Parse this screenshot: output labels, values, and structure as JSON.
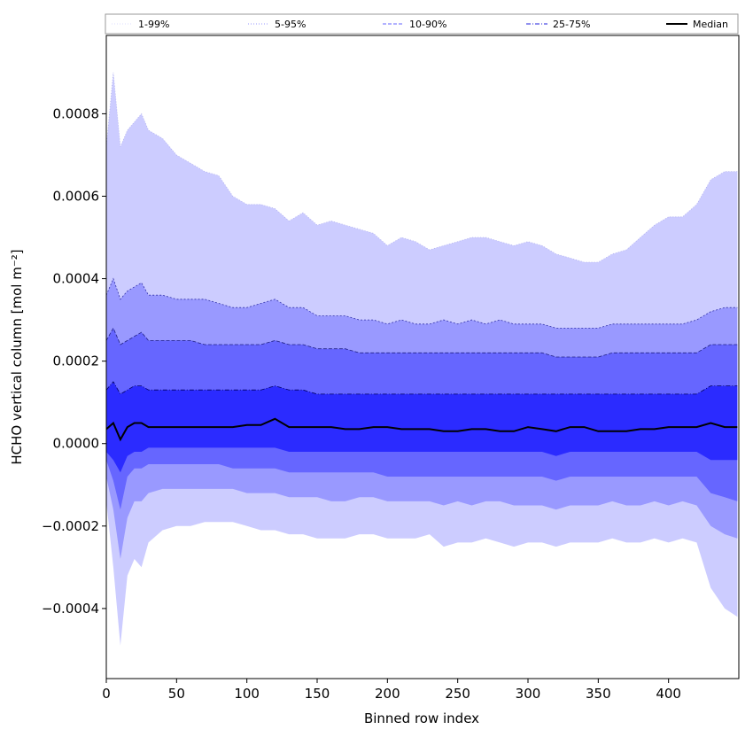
{
  "chart_data": {
    "type": "area",
    "xlabel": "Binned row index",
    "ylabel": "HCHO vertical column [mol m⁻²]",
    "xlim": [
      0,
      450
    ],
    "ylim": [
      -0.00057,
      0.00099
    ],
    "x_ticks": [
      0,
      50,
      100,
      150,
      200,
      250,
      300,
      350,
      400
    ],
    "x_tick_labels": [
      "0",
      "50",
      "100",
      "150",
      "200",
      "250",
      "300",
      "350",
      "400"
    ],
    "y_ticks": [
      -0.0004,
      -0.0002,
      0.0,
      0.0002,
      0.0004,
      0.0006,
      0.0008
    ],
    "y_tick_labels": [
      "−0.0004",
      "−0.0002",
      "0.0000",
      "0.0002",
      "0.0004",
      "0.0006",
      "0.0008"
    ],
    "grid": false,
    "legend_position": "top",
    "legend": [
      {
        "label": "1-99%",
        "color": "#dcdcff",
        "style": "dotted"
      },
      {
        "label": "5-95%",
        "color": "#9999ff",
        "style": "dotted"
      },
      {
        "label": "10-90%",
        "color": "#6666ff",
        "style": "dashed"
      },
      {
        "label": "25-75%",
        "color": "#2222dd",
        "style": "dashdot"
      },
      {
        "label": "Median",
        "color": "#000000",
        "style": "solid"
      }
    ],
    "x": [
      0,
      5,
      10,
      15,
      20,
      25,
      30,
      40,
      50,
      60,
      70,
      80,
      90,
      100,
      110,
      120,
      130,
      140,
      150,
      160,
      170,
      180,
      190,
      200,
      210,
      220,
      230,
      240,
      250,
      260,
      270,
      280,
      290,
      300,
      310,
      320,
      330,
      340,
      350,
      360,
      370,
      380,
      390,
      400,
      410,
      420,
      430,
      440,
      449
    ],
    "series": [
      {
        "name": "1-99%",
        "lower": [
          -0.00014,
          -0.0003,
          -0.00049,
          -0.00032,
          -0.00028,
          -0.0003,
          -0.00024,
          -0.00021,
          -0.0002,
          -0.0002,
          -0.00019,
          -0.00019,
          -0.00019,
          -0.0002,
          -0.00021,
          -0.00021,
          -0.00022,
          -0.00022,
          -0.00023,
          -0.00023,
          -0.00023,
          -0.00022,
          -0.00022,
          -0.00023,
          -0.00023,
          -0.00023,
          -0.00022,
          -0.00025,
          -0.00024,
          -0.00024,
          -0.00023,
          -0.00024,
          -0.00025,
          -0.00024,
          -0.00024,
          -0.00025,
          -0.00024,
          -0.00024,
          -0.00024,
          -0.00023,
          -0.00024,
          -0.00024,
          -0.00023,
          -0.00024,
          -0.00023,
          -0.00024,
          -0.00035,
          -0.0004,
          -0.00042
        ],
        "upper": [
          0.00072,
          0.0009,
          0.00072,
          0.00076,
          0.00078,
          0.0008,
          0.00076,
          0.00074,
          0.0007,
          0.00068,
          0.00066,
          0.00065,
          0.0006,
          0.00058,
          0.00058,
          0.00057,
          0.00054,
          0.00056,
          0.00053,
          0.00054,
          0.00053,
          0.00052,
          0.00051,
          0.00048,
          0.0005,
          0.00049,
          0.00047,
          0.00048,
          0.00049,
          0.0005,
          0.0005,
          0.00049,
          0.00048,
          0.00049,
          0.00048,
          0.00046,
          0.00045,
          0.00044,
          0.00044,
          0.00046,
          0.00047,
          0.0005,
          0.00053,
          0.00055,
          0.00055,
          0.00058,
          0.00064,
          0.00066,
          0.00066
        ]
      },
      {
        "name": "5-95%",
        "lower": [
          -8e-05,
          -0.00016,
          -0.00028,
          -0.00018,
          -0.00014,
          -0.00014,
          -0.00012,
          -0.00011,
          -0.00011,
          -0.00011,
          -0.00011,
          -0.00011,
          -0.00011,
          -0.00012,
          -0.00012,
          -0.00012,
          -0.00013,
          -0.00013,
          -0.00013,
          -0.00014,
          -0.00014,
          -0.00013,
          -0.00013,
          -0.00014,
          -0.00014,
          -0.00014,
          -0.00014,
          -0.00015,
          -0.00014,
          -0.00015,
          -0.00014,
          -0.00014,
          -0.00015,
          -0.00015,
          -0.00015,
          -0.00016,
          -0.00015,
          -0.00015,
          -0.00015,
          -0.00014,
          -0.00015,
          -0.00015,
          -0.00014,
          -0.00015,
          -0.00014,
          -0.00015,
          -0.0002,
          -0.00022,
          -0.00023
        ],
        "upper": [
          0.00036,
          0.0004,
          0.00035,
          0.00037,
          0.00038,
          0.00039,
          0.00036,
          0.00036,
          0.00035,
          0.00035,
          0.00035,
          0.00034,
          0.00033,
          0.00033,
          0.00034,
          0.00035,
          0.00033,
          0.00033,
          0.00031,
          0.00031,
          0.00031,
          0.0003,
          0.0003,
          0.00029,
          0.0003,
          0.00029,
          0.00029,
          0.0003,
          0.00029,
          0.0003,
          0.00029,
          0.0003,
          0.00029,
          0.00029,
          0.00029,
          0.00028,
          0.00028,
          0.00028,
          0.00028,
          0.00029,
          0.00029,
          0.00029,
          0.00029,
          0.00029,
          0.00029,
          0.0003,
          0.00032,
          0.00033,
          0.00033
        ]
      },
      {
        "name": "10-90%",
        "lower": [
          -4e-05,
          -9e-05,
          -0.00016,
          -8e-05,
          -6e-05,
          -6e-05,
          -5e-05,
          -5e-05,
          -5e-05,
          -5e-05,
          -5e-05,
          -5e-05,
          -6e-05,
          -6e-05,
          -6e-05,
          -6e-05,
          -7e-05,
          -7e-05,
          -7e-05,
          -7e-05,
          -7e-05,
          -7e-05,
          -7e-05,
          -8e-05,
          -8e-05,
          -8e-05,
          -8e-05,
          -8e-05,
          -8e-05,
          -8e-05,
          -8e-05,
          -8e-05,
          -8e-05,
          -8e-05,
          -8e-05,
          -9e-05,
          -8e-05,
          -8e-05,
          -8e-05,
          -8e-05,
          -8e-05,
          -8e-05,
          -8e-05,
          -8e-05,
          -8e-05,
          -8e-05,
          -0.00012,
          -0.00013,
          -0.00014
        ],
        "upper": [
          0.00025,
          0.00028,
          0.00024,
          0.00025,
          0.00026,
          0.00027,
          0.00025,
          0.00025,
          0.00025,
          0.00025,
          0.00024,
          0.00024,
          0.00024,
          0.00024,
          0.00024,
          0.00025,
          0.00024,
          0.00024,
          0.00023,
          0.00023,
          0.00023,
          0.00022,
          0.00022,
          0.00022,
          0.00022,
          0.00022,
          0.00022,
          0.00022,
          0.00022,
          0.00022,
          0.00022,
          0.00022,
          0.00022,
          0.00022,
          0.00022,
          0.00021,
          0.00021,
          0.00021,
          0.00021,
          0.00022,
          0.00022,
          0.00022,
          0.00022,
          0.00022,
          0.00022,
          0.00022,
          0.00024,
          0.00024,
          0.00024
        ]
      },
      {
        "name": "25-75%",
        "lower": [
          -2e-05,
          -4e-05,
          -7e-05,
          -3e-05,
          -2e-05,
          -2e-05,
          -1e-05,
          -1e-05,
          -1e-05,
          -1e-05,
          -1e-05,
          -1e-05,
          -1e-05,
          -1e-05,
          -1e-05,
          -1e-05,
          -2e-05,
          -2e-05,
          -2e-05,
          -2e-05,
          -2e-05,
          -2e-05,
          -2e-05,
          -2e-05,
          -2e-05,
          -2e-05,
          -2e-05,
          -2e-05,
          -2e-05,
          -2e-05,
          -2e-05,
          -2e-05,
          -2e-05,
          -2e-05,
          -2e-05,
          -3e-05,
          -2e-05,
          -2e-05,
          -2e-05,
          -2e-05,
          -2e-05,
          -2e-05,
          -2e-05,
          -2e-05,
          -2e-05,
          -2e-05,
          -4e-05,
          -4e-05,
          -4e-05
        ],
        "upper": [
          0.00013,
          0.00015,
          0.00012,
          0.00013,
          0.00014,
          0.00014,
          0.00013,
          0.00013,
          0.00013,
          0.00013,
          0.00013,
          0.00013,
          0.00013,
          0.00013,
          0.00013,
          0.00014,
          0.00013,
          0.00013,
          0.00012,
          0.00012,
          0.00012,
          0.00012,
          0.00012,
          0.00012,
          0.00012,
          0.00012,
          0.00012,
          0.00012,
          0.00012,
          0.00012,
          0.00012,
          0.00012,
          0.00012,
          0.00012,
          0.00012,
          0.00012,
          0.00012,
          0.00012,
          0.00012,
          0.00012,
          0.00012,
          0.00012,
          0.00012,
          0.00012,
          0.00012,
          0.00012,
          0.00014,
          0.00014,
          0.00014
        ]
      },
      {
        "name": "Median",
        "values": [
          3.5e-05,
          5e-05,
          1e-05,
          4e-05,
          5e-05,
          5e-05,
          4e-05,
          4e-05,
          4e-05,
          4e-05,
          4e-05,
          4e-05,
          4e-05,
          4.5e-05,
          4.5e-05,
          6e-05,
          4e-05,
          4e-05,
          4e-05,
          4e-05,
          3.5e-05,
          3.5e-05,
          4e-05,
          4e-05,
          3.5e-05,
          3.5e-05,
          3.5e-05,
          3e-05,
          3e-05,
          3.5e-05,
          3.5e-05,
          3e-05,
          3e-05,
          4e-05,
          3.5e-05,
          3e-05,
          4e-05,
          4e-05,
          3e-05,
          3e-05,
          3e-05,
          3.5e-05,
          3.5e-05,
          4e-05,
          4e-05,
          4e-05,
          5e-05,
          4e-05,
          4e-05
        ]
      }
    ]
  }
}
